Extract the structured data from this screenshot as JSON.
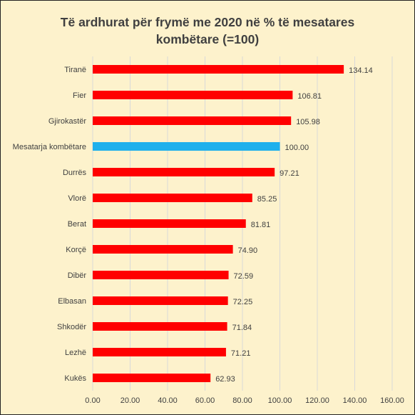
{
  "chart_data": {
    "type": "bar",
    "orientation": "horizontal",
    "title_line1": "Të ardhurat për frymë me 2020 në % të mesatares",
    "title_line2": "kombëtare (=100)",
    "categories": [
      "Tiranë",
      "Fier",
      "Gjirokastër",
      "Mesatarja kombëtare",
      "Durrës",
      "Vlorë",
      "Berat",
      "Korçë",
      "Dibër",
      "Elbasan",
      "Shkodër",
      "Lezhë",
      "Kukës"
    ],
    "values": [
      134.14,
      106.81,
      105.98,
      100.0,
      97.21,
      85.25,
      81.81,
      74.9,
      72.59,
      72.25,
      71.84,
      71.21,
      62.93
    ],
    "value_labels": [
      "134.14",
      "106.81",
      "105.98",
      "100.00",
      "97.21",
      "85.25",
      "81.81",
      "74.90",
      "72.59",
      "72.25",
      "71.84",
      "71.21",
      "62.93"
    ],
    "xlim": [
      0,
      160
    ],
    "x_ticks": [
      "0.00",
      "20.00",
      "40.00",
      "60.00",
      "80.00",
      "100.00",
      "120.00",
      "140.00",
      "160.00"
    ],
    "grid": "vertical",
    "legend": "none",
    "colors": {
      "default": "#ff0000",
      "highlight": "#1fb0ec",
      "grid": "#d9d9d9",
      "background": "#fdf2cc"
    },
    "highlight_category": "Mesatarja kombëtare"
  }
}
